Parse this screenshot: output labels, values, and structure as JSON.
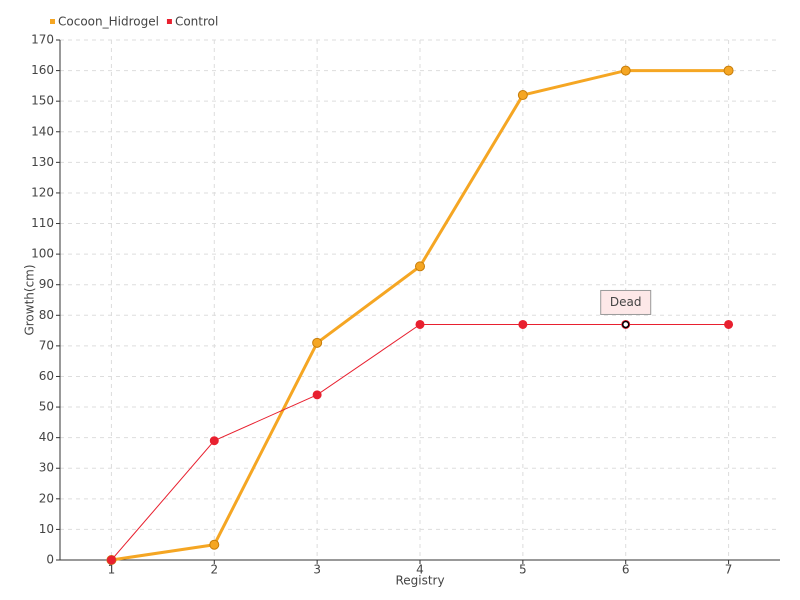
{
  "chart_data": {
    "type": "line",
    "x_label": "Registry",
    "y_label": "Growth(cm)",
    "x": [
      1,
      2,
      3,
      4,
      5,
      6,
      7
    ],
    "xlim": [
      0.5,
      7.5
    ],
    "xticks": [
      1,
      2,
      3,
      4,
      5,
      6,
      7
    ],
    "ylim": [
      0,
      170
    ],
    "yticks": [
      0,
      10,
      20,
      30,
      40,
      50,
      60,
      70,
      80,
      90,
      100,
      110,
      120,
      130,
      140,
      150,
      160,
      170
    ],
    "grid": true,
    "legend": "top-left",
    "series": [
      {
        "name": "Cocoon_Hidrogel",
        "color": "#f5a623",
        "values": [
          0,
          5,
          71,
          96,
          152,
          160,
          160
        ]
      },
      {
        "name": "Control",
        "color": "#e8202f",
        "values": [
          0,
          39,
          54,
          77,
          77,
          77,
          77
        ]
      }
    ],
    "annotations": [
      {
        "text": "Dead",
        "x": 6,
        "y": 77
      }
    ]
  }
}
